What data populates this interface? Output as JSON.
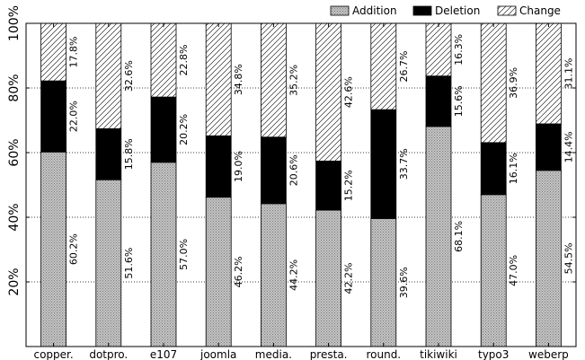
{
  "chart_data": {
    "type": "bar",
    "stacked": true,
    "categories": [
      "copper.",
      "dotpro.",
      "e107",
      "joomla",
      "media.",
      "presta.",
      "round.",
      "tikiwiki",
      "typo3",
      "weberp"
    ],
    "series": [
      {
        "name": "Addition",
        "values": [
          60.2,
          51.6,
          57.0,
          46.2,
          44.2,
          42.2,
          39.6,
          68.1,
          47.0,
          54.5
        ],
        "labels": [
          "60.2%",
          "51.6%",
          "57.0%",
          "46.2%",
          "44.2%",
          "42.2%",
          "39.6%",
          "68.1%",
          "47.0%",
          "54.5%"
        ]
      },
      {
        "name": "Deletion",
        "values": [
          22.0,
          15.8,
          20.2,
          19.0,
          20.6,
          15.2,
          33.7,
          15.6,
          16.1,
          14.4
        ],
        "labels": [
          "22.0%",
          "15.8%",
          "20.2%",
          "19.0%",
          "20.6%",
          "15.2%",
          "33.7%",
          "15.6%",
          "16.1%",
          "14.4%"
        ]
      },
      {
        "name": "Change",
        "values": [
          17.8,
          32.6,
          22.8,
          34.8,
          35.2,
          42.6,
          26.7,
          16.3,
          36.9,
          31.1
        ],
        "labels": [
          "17.8%",
          "32.6%",
          "22.8%",
          "34.8%",
          "35.2%",
          "42.6%",
          "26.7%",
          "16.3%",
          "36.9%",
          "31.1%"
        ]
      }
    ],
    "y_ticks": [
      20,
      40,
      60,
      80,
      100
    ],
    "y_tick_labels": [
      "20%",
      "40%",
      "60%",
      "80%",
      "100%"
    ],
    "ylim": [
      0,
      100
    ],
    "grid": "horizontal-dotted",
    "legend": "top-right"
  }
}
